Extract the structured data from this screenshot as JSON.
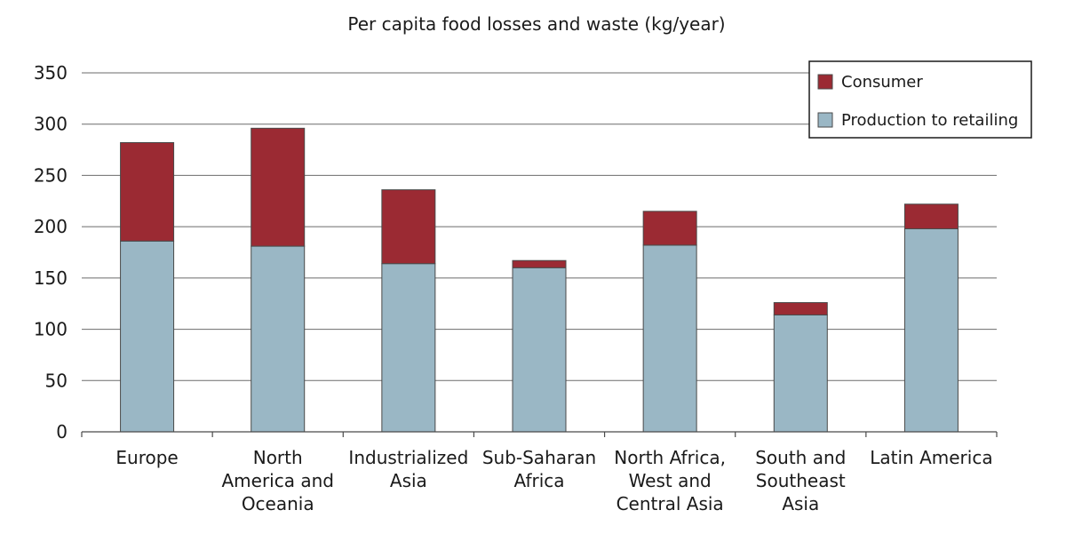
{
  "chart_data": {
    "type": "bar",
    "stacked": true,
    "title": "Per capita food losses and waste (kg/year)",
    "xlabel": "",
    "ylabel": "",
    "ylim": [
      0,
      350
    ],
    "yticks": [
      0,
      50,
      100,
      150,
      200,
      250,
      300,
      350
    ],
    "grid": true,
    "legend_position": "top-right",
    "categories": [
      "Europe",
      "North America and Oceania",
      "Industrialized Asia",
      "Sub-Saharan Africa",
      "North Africa, West and Central Asia",
      "South and Southeast Asia",
      "Latin America"
    ],
    "category_lines": [
      [
        "Europe"
      ],
      [
        "North",
        "America and",
        "Oceania"
      ],
      [
        "Industrialized",
        "Asia"
      ],
      [
        "Sub-Saharan",
        "Africa"
      ],
      [
        "North Africa,",
        "West and",
        "Central Asia"
      ],
      [
        "South and",
        "Southeast",
        "Asia"
      ],
      [
        "Latin America"
      ]
    ],
    "series": [
      {
        "name": "Production to retailing",
        "color": "#9ab7c5",
        "values": [
          186,
          181,
          164,
          160,
          182,
          114,
          198
        ]
      },
      {
        "name": "Consumer",
        "color": "#9b2a33",
        "values": [
          96,
          115,
          72,
          7,
          33,
          12,
          24
        ]
      }
    ],
    "legend_order": [
      "Consumer",
      "Production to retailing"
    ]
  }
}
